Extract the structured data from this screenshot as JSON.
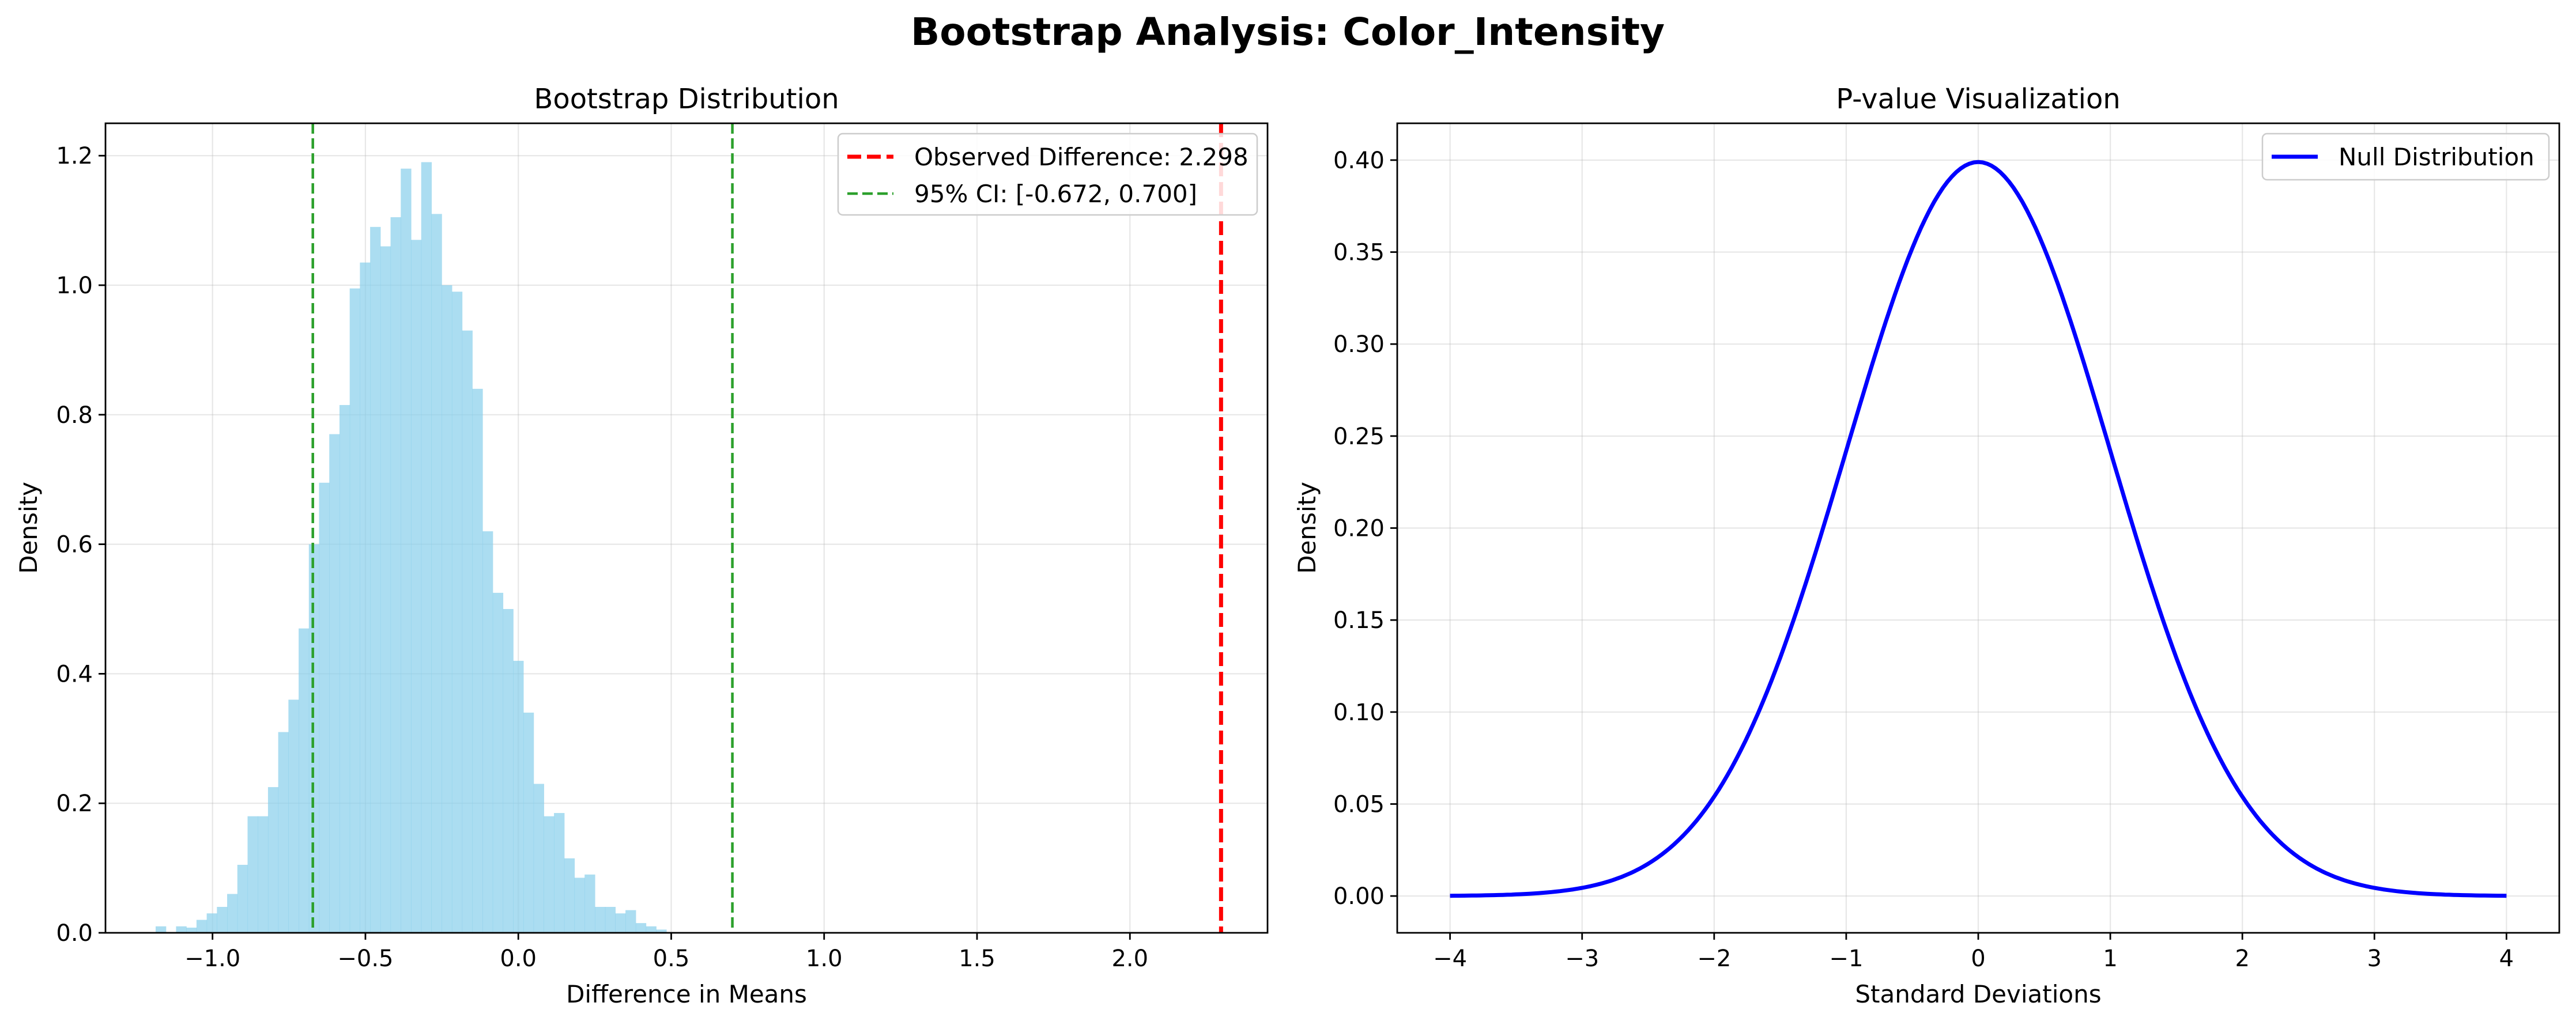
{
  "figure": {
    "suptitle": "Bootstrap Analysis: Color_Intensity"
  },
  "chart_data": [
    {
      "type": "bar",
      "subtype": "histogram",
      "title": "Bootstrap Distribution",
      "xlabel": "Difference in Means",
      "ylabel": "Density",
      "xlim": [
        -1.35,
        2.45
      ],
      "ylim": [
        0,
        1.25
      ],
      "xticks": [
        -1.0,
        -0.5,
        0.0,
        0.5,
        1.0,
        1.5,
        2.0
      ],
      "xtick_labels": [
        "−1.0",
        "−0.5",
        "0.0",
        "0.5",
        "1.0",
        "1.5",
        "2.0"
      ],
      "yticks": [
        0.0,
        0.2,
        0.4,
        0.6,
        0.8,
        1.0,
        1.2
      ],
      "ytick_labels": [
        "0.0",
        "0.2",
        "0.4",
        "0.6",
        "0.8",
        "1.0",
        "1.2"
      ],
      "grid": true,
      "legend_position": "top-right",
      "bar_color": "#87ceeb",
      "bin_start": -1.186,
      "bin_width": 0.0334,
      "densities": [
        0.01,
        0.0,
        0.01,
        0.008,
        0.02,
        0.03,
        0.04,
        0.06,
        0.105,
        0.18,
        0.18,
        0.225,
        0.31,
        0.36,
        0.47,
        0.6,
        0.695,
        0.77,
        0.815,
        0.995,
        1.035,
        1.09,
        1.06,
        1.105,
        1.18,
        1.07,
        1.19,
        1.11,
        1.0,
        0.99,
        0.93,
        0.84,
        0.62,
        0.525,
        0.5,
        0.42,
        0.34,
        0.23,
        0.18,
        0.185,
        0.115,
        0.085,
        0.09,
        0.04,
        0.04,
        0.03,
        0.035,
        0.015,
        0.01,
        0.005
      ],
      "reference_lines": [
        {
          "name": "Observed Difference: 2.298",
          "x": 2.298,
          "color": "#ff0000",
          "style": "dashed-thick"
        },
        {
          "name": "95% CI: [-0.672, 0.700]",
          "x": -0.672,
          "x2": 0.7,
          "color": "#2ca02c",
          "style": "dashed"
        }
      ]
    },
    {
      "type": "line",
      "title": "P-value Visualization",
      "xlabel": "Standard Deviations",
      "ylabel": "Density",
      "xlim": [
        -4.4,
        4.4
      ],
      "ylim": [
        -0.02,
        0.42
      ],
      "xticks": [
        -4,
        -3,
        -2,
        -1,
        0,
        1,
        2,
        3,
        4
      ],
      "xtick_labels": [
        "−4",
        "−3",
        "−2",
        "−1",
        "0",
        "1",
        "2",
        "3",
        "4"
      ],
      "yticks": [
        0.0,
        0.05,
        0.1,
        0.15,
        0.2,
        0.25,
        0.3,
        0.35,
        0.4
      ],
      "ytick_labels": [
        "0.00",
        "0.05",
        "0.10",
        "0.15",
        "0.20",
        "0.25",
        "0.30",
        "0.35",
        "0.40"
      ],
      "grid": true,
      "legend_position": "top-right",
      "series": [
        {
          "name": "Null Distribution",
          "color": "#0000ff",
          "x": [
            -4.0,
            -3.75,
            -3.5,
            -3.25,
            -3.0,
            -2.75,
            -2.5,
            -2.25,
            -2.0,
            -1.75,
            -1.5,
            -1.25,
            -1.0,
            -0.75,
            -0.5,
            -0.25,
            0.0,
            0.25,
            0.5,
            0.75,
            1.0,
            1.25,
            1.5,
            1.75,
            2.0,
            2.25,
            2.5,
            2.75,
            3.0,
            3.25,
            3.5,
            3.75,
            4.0
          ],
          "y": [
            0.0001,
            0.0004,
            0.0009,
            0.002,
            0.0044,
            0.0091,
            0.0175,
            0.0317,
            0.054,
            0.0863,
            0.1295,
            0.1826,
            0.242,
            0.3011,
            0.3521,
            0.3867,
            0.3989,
            0.3867,
            0.3521,
            0.3011,
            0.242,
            0.1826,
            0.1295,
            0.0863,
            0.054,
            0.0317,
            0.0175,
            0.0091,
            0.0044,
            0.002,
            0.0009,
            0.0004,
            0.0001
          ]
        }
      ]
    }
  ]
}
